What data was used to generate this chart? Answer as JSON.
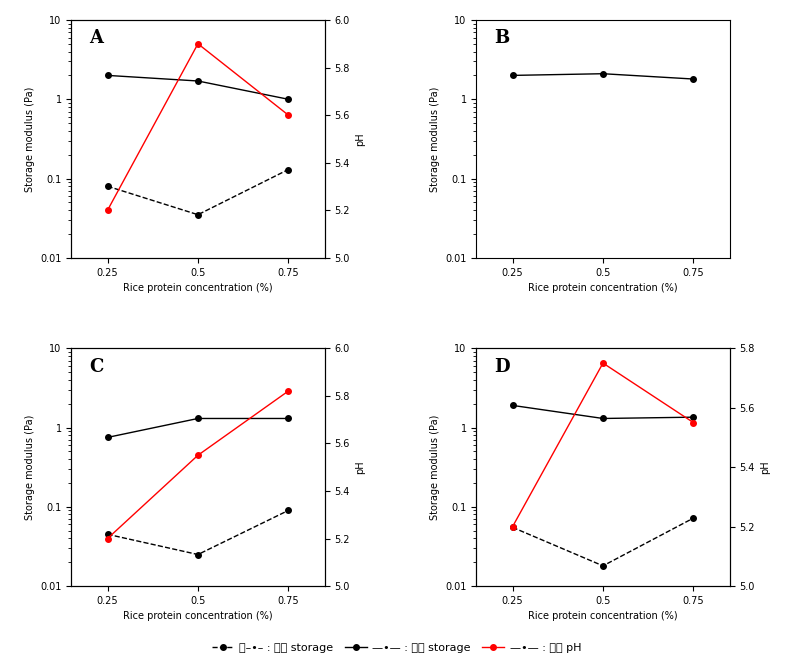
{
  "x": [
    0.25,
    0.5,
    0.75
  ],
  "panels": {
    "A": {
      "crossover_storage": [
        0.08,
        0.035,
        0.13
      ],
      "final_storage": [
        2.0,
        1.7,
        1.0
      ],
      "crossover_pH": [
        5.2,
        5.9,
        5.6
      ],
      "has_pH": true,
      "pH_ylim": [
        5.0,
        6.0
      ],
      "pH_yticks": [
        5.0,
        5.2,
        5.4,
        5.6,
        5.8,
        6.0
      ]
    },
    "B": {
      "crossover_storage": null,
      "final_storage": [
        2.0,
        2.1,
        1.8
      ],
      "crossover_pH": null,
      "has_pH": false,
      "pH_ylim": null,
      "pH_yticks": null
    },
    "C": {
      "crossover_storage": [
        0.045,
        0.025,
        0.09
      ],
      "final_storage": [
        0.75,
        1.3,
        1.3
      ],
      "crossover_pH": [
        5.2,
        5.55,
        5.82
      ],
      "has_pH": true,
      "pH_ylim": [
        5.0,
        6.0
      ],
      "pH_yticks": [
        5.0,
        5.2,
        5.4,
        5.6,
        5.8,
        6.0
      ]
    },
    "D": {
      "crossover_storage": [
        0.055,
        0.018,
        0.072
      ],
      "final_storage": [
        1.9,
        1.3,
        1.35
      ],
      "crossover_pH": [
        5.2,
        5.75,
        5.55
      ],
      "has_pH": true,
      "pH_ylim": [
        5.0,
        5.8
      ],
      "pH_yticks": [
        5.0,
        5.2,
        5.4,
        5.6,
        5.8
      ]
    }
  },
  "xlabel": "Rice protein concentration (%)",
  "ylabel": "Storage modulus (Pa)",
  "ylabel_right": "pH",
  "xlim": [
    0.15,
    0.85
  ],
  "xticks": [
    0.25,
    0.5,
    0.75
  ],
  "xtick_labels": [
    "0.25",
    "0.5",
    "0.75"
  ],
  "ylim_log": [
    0.01,
    10
  ],
  "yticks_log": [
    0.01,
    0.1,
    1,
    10
  ],
  "ytick_labels_log": [
    "0.01",
    "0.1",
    "1",
    "10"
  ],
  "line_color_crossover": "black",
  "line_color_final": "black",
  "line_color_pH": "red",
  "marker": "o",
  "markersize": 4,
  "linewidth": 1.0,
  "fontsize_label": 7,
  "fontsize_tick": 7,
  "fontsize_legend": 8,
  "fontsize_panel": 13
}
